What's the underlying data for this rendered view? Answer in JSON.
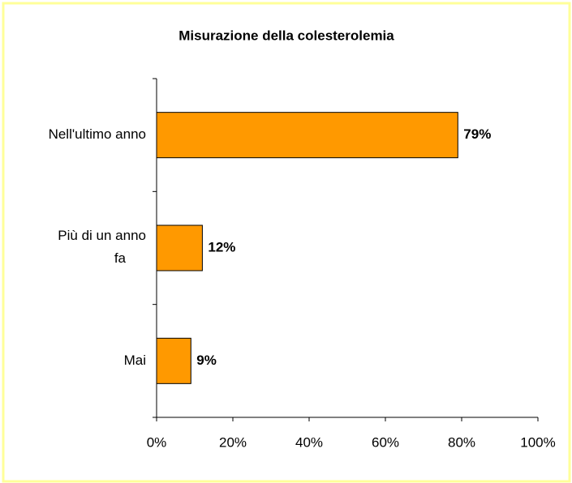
{
  "chart_data": {
    "type": "bar",
    "orientation": "horizontal",
    "title": "Misurazione della colesterolemia",
    "categories": [
      "Nell'ultimo anno",
      "Più di un anno fa",
      "Mai"
    ],
    "values": [
      79,
      12,
      9
    ],
    "value_labels": [
      "79%",
      "12%",
      "9%"
    ],
    "color": "#ff9900",
    "xlim": [
      0,
      100
    ],
    "xticks": [
      {
        "value": 0,
        "label": "0%"
      },
      {
        "value": 20,
        "label": "20%"
      },
      {
        "value": 40,
        "label": "40%"
      },
      {
        "value": 60,
        "label": "60%"
      },
      {
        "value": 80,
        "label": "80%"
      },
      {
        "value": 100,
        "label": "100%"
      }
    ],
    "grid": false
  }
}
